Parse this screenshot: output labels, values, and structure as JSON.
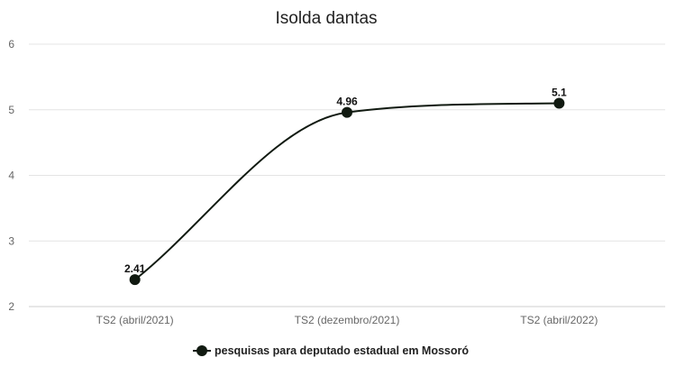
{
  "chart_data": {
    "type": "line",
    "title": "Isolda dantas",
    "categories": [
      "TS2 (abril/2021)",
      "TS2 (dezembro/2021)",
      "TS2 (abril/2022)"
    ],
    "series": [
      {
        "name": "pesquisas para deputado estadual em Mossoró",
        "values": [
          2.41,
          4.96,
          5.1
        ],
        "labels": [
          "2.41",
          "4.96",
          "5.1"
        ],
        "color": "#111a11"
      }
    ],
    "ylim": [
      2,
      6
    ],
    "yticks": [
      "2",
      "3",
      "4",
      "5",
      "6"
    ],
    "grid": true,
    "smooth": true,
    "legend": "bottom"
  }
}
